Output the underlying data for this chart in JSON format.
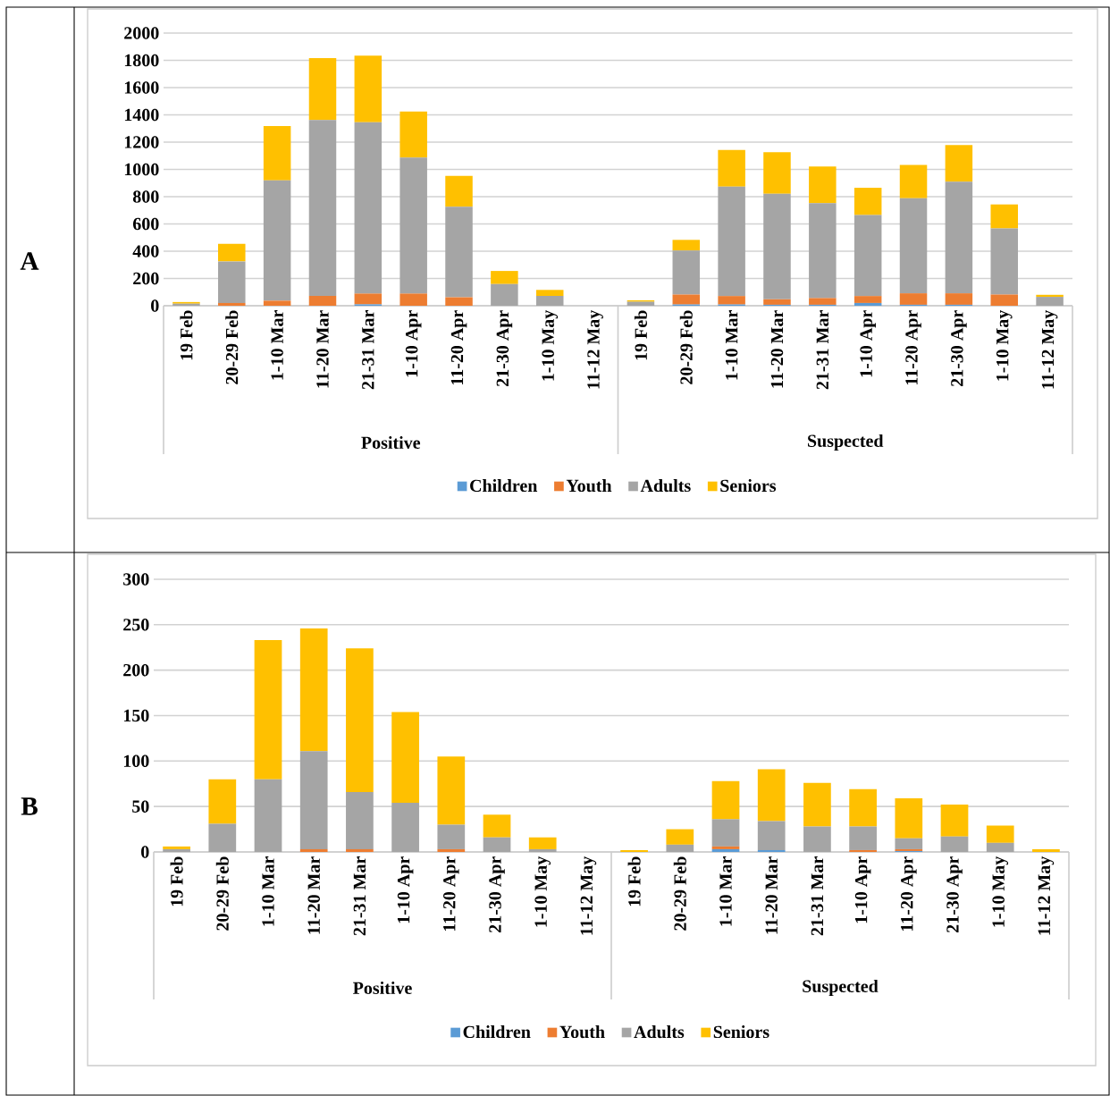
{
  "chart_data": [
    {
      "type": "bar",
      "title": "A",
      "stacked": true,
      "grid": "y",
      "legend": "bottom",
      "categories": [
        "19 Feb",
        "20-29 Feb",
        "1-10 Mar",
        "11-20 Mar",
        "21-31 Mar",
        "1-10 Apr",
        "11-20 Apr",
        "21-30 Apr",
        "1-10 May",
        "11-12 May",
        "19 Feb",
        "20-29 Feb",
        "1-10 Mar",
        "11-20 Mar",
        "21-31 Mar",
        "1-10 Apr",
        "11-20 Apr",
        "21-30 Apr",
        "1-10 May",
        "11-12 May"
      ],
      "series": [
        {
          "name": "Children",
          "color": "#5b9bd5",
          "values": [
            0,
            0,
            0,
            null,
            10,
            null,
            0,
            0,
            0,
            0,
            0,
            9,
            9,
            7,
            7,
            20,
            7,
            7,
            0,
            0
          ]
        },
        {
          "name": "Youth",
          "color": "#ed7d31",
          "values": [
            0,
            20,
            37,
            72,
            79,
            89,
            62,
            null,
            0,
            0,
            0,
            73,
            62,
            40,
            49,
            51,
            84,
            84,
            82,
            0
          ]
        },
        {
          "name": "Adults",
          "color": "#a5a5a5",
          "values": [
            15,
            305,
            882,
            1291,
            1257,
            997,
            664,
            159,
            72,
            0,
            29,
            323,
            803,
            774,
            696,
            594,
            697,
            819,
            485,
            65
          ]
        },
        {
          "name": "Seniors",
          "color": "#ffc000",
          "values": [
            12,
            129,
            399,
            454,
            488,
            339,
            226,
            96,
            44,
            0,
            11,
            78,
            269,
            305,
            269,
            200,
            244,
            269,
            176,
            15
          ]
        }
      ],
      "ylim": [
        0,
        2000
      ],
      "yticks": [
        0,
        200,
        400,
        600,
        800,
        1000,
        1200,
        1400,
        1600,
        1800,
        2000
      ],
      "annotations": [
        "Positive",
        "Suspected"
      ]
    },
    {
      "type": "bar",
      "title": "B",
      "stacked": true,
      "grid": "y",
      "legend": "bottom",
      "categories": [
        "19 Feb",
        "20-29 Feb",
        "1-10 Mar",
        "11-20 Mar",
        "21-31 Mar",
        "1-10 Apr",
        "11-20 Apr",
        "21-30 Apr",
        "1-10 May",
        "11-12 May",
        "19 Feb",
        "20-29 Feb",
        "1-10 Mar",
        "11-20 Mar",
        "21-31 Mar",
        "1-10 Apr",
        "11-20 Apr",
        "21-30 Apr",
        "1-10 May",
        "11-12 May"
      ],
      "series": [
        {
          "name": "Children",
          "color": "#5b9bd5",
          "values": [
            0,
            0,
            0,
            0,
            0,
            0,
            0,
            0,
            0,
            0,
            0,
            0,
            3,
            2,
            0,
            0,
            1,
            0,
            0,
            0
          ]
        },
        {
          "name": "Youth",
          "color": "#ed7d31",
          "values": [
            0,
            0,
            0,
            3,
            3,
            0,
            3,
            0,
            0,
            0,
            0,
            0,
            3,
            0,
            0,
            2,
            2,
            0,
            0,
            0
          ]
        },
        {
          "name": "Adults",
          "color": "#a5a5a5",
          "values": [
            3,
            31,
            80,
            108,
            63,
            54,
            27,
            16,
            3,
            0,
            0,
            8,
            30,
            32,
            28,
            26,
            12,
            17,
            10,
            0
          ]
        },
        {
          "name": "Seniors",
          "color": "#ffc000",
          "values": [
            3,
            49,
            153,
            135,
            158,
            100,
            75,
            25,
            13,
            0,
            2,
            17,
            42,
            57,
            48,
            41,
            44,
            35,
            19,
            3
          ]
        }
      ],
      "ylim": [
        0,
        300
      ],
      "yticks": [
        0,
        50,
        100,
        150,
        200,
        250,
        300
      ],
      "annotations": [
        "Positive",
        "Suspected"
      ]
    }
  ]
}
